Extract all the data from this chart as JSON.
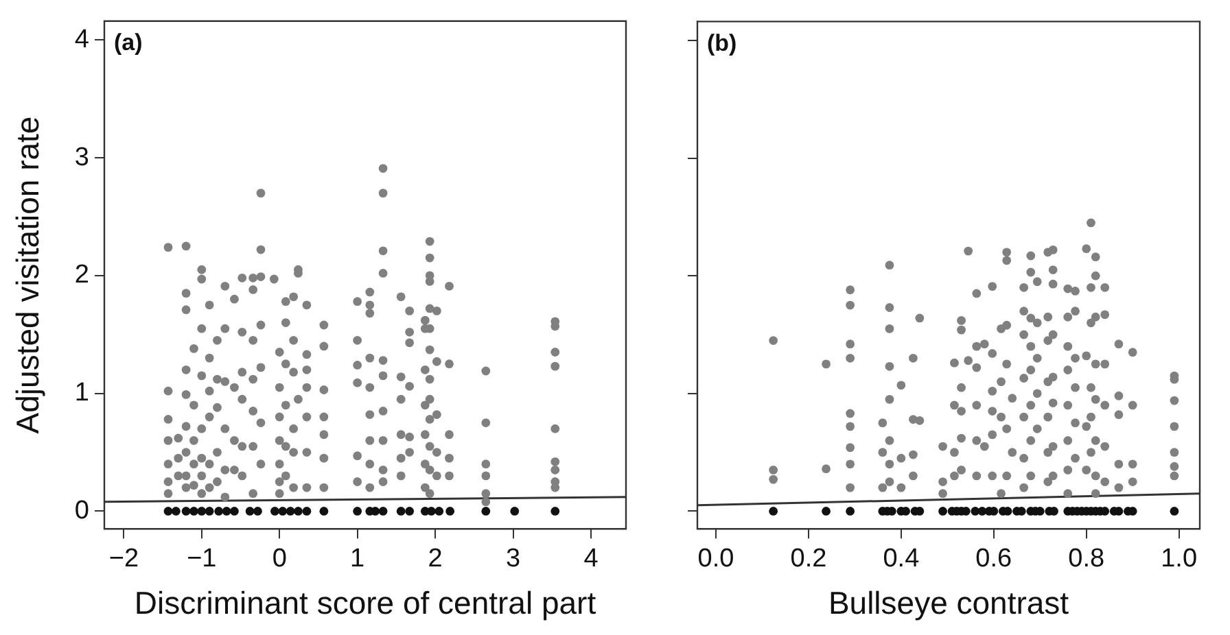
{
  "chart_data": [
    {
      "type": "scatter",
      "annotations": [
        "(a)"
      ],
      "xlabel": "Discriminant score of central part",
      "ylabel": "Adjusted visitation rate",
      "xlim": [
        -2.25,
        4.45
      ],
      "xticks": [
        {
          "value": -2,
          "label": "−2"
        },
        {
          "value": -1,
          "label": "−1"
        },
        0,
        1,
        2,
        3,
        4
      ],
      "ylim": [
        -0.15,
        4.16
      ],
      "yticks": [
        0,
        1,
        2,
        3,
        4
      ],
      "grid": false,
      "legend": false,
      "marker": "circle",
      "series": [
        {
          "color": "#808080",
          "x": [
            -1.43,
            -1.43,
            -1.43,
            -1.43,
            -1.43,
            -1.43,
            -1.43,
            -1.3,
            -1.3,
            -1.3,
            -1.2,
            -1.2,
            -1.2,
            -1.2,
            -1.2,
            -1.2,
            -1.2,
            -1.2,
            -1.2,
            -1.1,
            -1.1,
            -1.1,
            -1.1,
            -1.1,
            -1.0,
            -1.0,
            -1.0,
            -1.0,
            -1.0,
            -1.0,
            -1.0,
            -1.0,
            -0.9,
            -0.9,
            -0.9,
            -0.9,
            -0.9,
            -0.9,
            -0.8,
            -0.8,
            -0.8,
            -0.8,
            -0.8,
            -0.7,
            -0.7,
            -0.7,
            -0.7,
            -0.7,
            -0.7,
            -0.58,
            -0.58,
            -0.58,
            -0.58,
            -0.48,
            -0.48,
            -0.48,
            -0.48,
            -0.48,
            -0.48,
            -0.34,
            -0.34,
            -0.34,
            -0.34,
            -0.34,
            -0.34,
            -0.34,
            -0.24,
            -0.24,
            -0.24,
            -0.24,
            -0.24,
            -0.24,
            -0.24,
            -0.07,
            0.0,
            0.0,
            0.0,
            0.0,
            0.0,
            0.0,
            0.0,
            0.08,
            0.08,
            0.08,
            0.08,
            0.08,
            0.08,
            0.18,
            0.18,
            0.18,
            0.18,
            0.18,
            0.18,
            0.24,
            0.24,
            0.24,
            0.35,
            0.35,
            0.35,
            0.35,
            0.35,
            0.35,
            0.35,
            0.57,
            0.57,
            0.57,
            0.57,
            0.57,
            0.57,
            0.57,
            1.0,
            1.0,
            1.0,
            1.0,
            1.0,
            1.0,
            1.16,
            1.16,
            1.16,
            1.16,
            1.16,
            1.16,
            1.16,
            1.16,
            1.16,
            1.33,
            1.33,
            1.33,
            1.33,
            1.33,
            1.33,
            1.33,
            1.33,
            1.33,
            1.33,
            1.56,
            1.56,
            1.56,
            1.56,
            1.56,
            1.56,
            1.67,
            1.67,
            1.67,
            1.67,
            1.67,
            1.67,
            1.87,
            1.87,
            1.87,
            1.87,
            1.87,
            1.87,
            1.87,
            1.93,
            1.93,
            1.93,
            1.93,
            1.93,
            1.93,
            1.93,
            1.93,
            1.93,
            1.93,
            1.93,
            1.93,
            1.93,
            2.02,
            2.02,
            2.02,
            2.02,
            2.02,
            2.18,
            2.18,
            2.18,
            2.18,
            2.18,
            2.65,
            2.65,
            2.65,
            2.65,
            2.65,
            2.65,
            3.54,
            3.54,
            3.54,
            3.54,
            3.54,
            3.54,
            3.54,
            3.54,
            3.54
          ],
          "values": [
            2.24,
            1.02,
            0.78,
            0.6,
            0.4,
            0.25,
            0.15,
            0.62,
            0.45,
            0.3,
            2.25,
            1.85,
            1.71,
            1.2,
            0.99,
            0.72,
            0.5,
            0.3,
            0.2,
            1.38,
            0.9,
            0.6,
            0.4,
            0.22,
            2.05,
            1.97,
            1.55,
            1.15,
            0.7,
            0.45,
            0.3,
            0.15,
            1.75,
            1.3,
            1.02,
            0.8,
            0.4,
            0.2,
            1.45,
            1.12,
            0.88,
            0.5,
            0.25,
            1.91,
            1.55,
            1.1,
            0.7,
            0.35,
            0.12,
            1.8,
            1.05,
            0.6,
            0.35,
            1.98,
            1.52,
            1.18,
            0.95,
            0.55,
            0.3,
            1.98,
            1.88,
            1.45,
            1.12,
            0.85,
            0.55,
            0.15,
            2.7,
            2.22,
            1.99,
            1.58,
            1.22,
            0.75,
            0.4,
            1.97,
            1.35,
            1.05,
            0.8,
            0.6,
            0.4,
            0.25,
            0.15,
            1.78,
            1.6,
            1.25,
            0.9,
            0.55,
            0.3,
            1.82,
            1.45,
            1.18,
            0.7,
            0.5,
            0.2,
            2.05,
            2.02,
            0.95,
            1.75,
            1.33,
            1.2,
            1.05,
            0.8,
            0.5,
            0.2,
            1.58,
            1.4,
            1.03,
            0.8,
            0.65,
            0.45,
            0.2,
            1.78,
            1.45,
            1.24,
            1.09,
            0.47,
            0.25,
            1.86,
            1.75,
            1.68,
            1.3,
            1.05,
            0.82,
            0.6,
            0.4,
            0.2,
            2.91,
            2.7,
            2.21,
            2.02,
            1.28,
            1.15,
            0.85,
            0.6,
            0.35,
            0.25,
            1.82,
            1.14,
            0.95,
            0.65,
            0.45,
            0.3,
            1.7,
            1.52,
            1.43,
            1.06,
            0.63,
            0.5,
            1.62,
            1.55,
            1.2,
            0.9,
            0.65,
            0.4,
            0.2,
            2.29,
            2.15,
            2.0,
            1.95,
            1.72,
            1.55,
            1.37,
            1.12,
            0.95,
            0.78,
            0.55,
            0.35,
            0.15,
            1.7,
            1.27,
            0.82,
            0.5,
            0.3,
            1.91,
            1.25,
            0.65,
            0.45,
            0.3,
            1.19,
            0.75,
            0.4,
            0.3,
            0.15,
            0.08,
            1.61,
            1.57,
            1.35,
            1.23,
            0.7,
            0.42,
            0.35,
            0.25,
            0.2
          ]
        },
        {
          "color": "#111111",
          "x": [
            -1.43,
            -1.33,
            -1.2,
            -1.1,
            -1.0,
            -0.9,
            -0.78,
            -0.68,
            -0.58,
            -0.38,
            -0.28,
            -0.06,
            0.04,
            0.14,
            0.24,
            0.35,
            0.57,
            1.0,
            1.16,
            1.23,
            1.33,
            1.56,
            1.67,
            1.87,
            1.95,
            2.05,
            2.19,
            2.65,
            3.02,
            3.54
          ],
          "values": [
            0,
            0,
            0,
            0,
            0,
            0,
            0,
            0,
            0,
            0,
            0,
            0,
            0,
            0,
            0,
            0,
            0,
            0,
            0,
            0,
            0,
            0,
            0,
            0,
            0,
            0,
            0,
            0,
            0,
            0
          ]
        },
        {
          "type": "line",
          "marker": "none",
          "color": "#333333",
          "x": [
            -2.25,
            4.45
          ],
          "values": [
            0.08,
            0.12
          ]
        }
      ]
    },
    {
      "type": "scatter",
      "annotations": [
        "(b)"
      ],
      "xlabel": "Bullseye contrast",
      "xlim": [
        -0.04,
        1.045
      ],
      "xticks": [
        {
          "value": 0,
          "label": "0.0"
        },
        0.2,
        0.4,
        0.6,
        0.8,
        {
          "value": 1,
          "label": "1.0"
        }
      ],
      "ylim": [
        -0.15,
        4.16
      ],
      "yticks": [
        0,
        1,
        2,
        3,
        4
      ],
      "tick_labels": "x",
      "grid": false,
      "legend": false,
      "marker": "circle",
      "series": [
        {
          "color": "#808080",
          "x": [
            0.124,
            0.124,
            0.124,
            0.238,
            0.238,
            0.29,
            0.29,
            0.29,
            0.29,
            0.29,
            0.29,
            0.29,
            0.29,
            0.29,
            0.36,
            0.36,
            0.36,
            0.375,
            0.375,
            0.375,
            0.375,
            0.375,
            0.375,
            0.375,
            0.375,
            0.4,
            0.4,
            0.4,
            0.426,
            0.426,
            0.426,
            0.426,
            0.44,
            0.44,
            0.49,
            0.49,
            0.49,
            0.515,
            0.515,
            0.515,
            0.515,
            0.53,
            0.53,
            0.53,
            0.53,
            0.53,
            0.53,
            0.545,
            0.545,
            0.563,
            0.563,
            0.563,
            0.563,
            0.563,
            0.563,
            0.58,
            0.58,
            0.597,
            0.597,
            0.597,
            0.597,
            0.597,
            0.597,
            0.616,
            0.616,
            0.616,
            0.616,
            0.628,
            0.628,
            0.628,
            0.628,
            0.628,
            0.628,
            0.64,
            0.64,
            0.665,
            0.665,
            0.665,
            0.665,
            0.665,
            0.665,
            0.665,
            0.68,
            0.68,
            0.68,
            0.68,
            0.68,
            0.68,
            0.68,
            0.68,
            0.694,
            0.694,
            0.694,
            0.694,
            0.694,
            0.717,
            0.717,
            0.717,
            0.717,
            0.717,
            0.717,
            0.717,
            0.728,
            0.728,
            0.728,
            0.728,
            0.728,
            0.728,
            0.728,
            0.728,
            0.76,
            0.76,
            0.76,
            0.76,
            0.76,
            0.76,
            0.76,
            0.76,
            0.776,
            0.776,
            0.776,
            0.776,
            0.776,
            0.776,
            0.8,
            0.8,
            0.8,
            0.8,
            0.81,
            0.81,
            0.81,
            0.81,
            0.81,
            0.81,
            0.82,
            0.82,
            0.82,
            0.82,
            0.82,
            0.82,
            0.82,
            0.82,
            0.84,
            0.84,
            0.84,
            0.84,
            0.84,
            0.84,
            0.87,
            0.87,
            0.87,
            0.87,
            0.87,
            0.9,
            0.9,
            0.9,
            0.9,
            0.99,
            0.99,
            0.99,
            0.99,
            0.99,
            0.99,
            0.99
          ],
          "values": [
            1.45,
            0.35,
            0.27,
            1.25,
            0.36,
            1.88,
            1.75,
            1.42,
            1.3,
            0.83,
            0.72,
            0.54,
            0.4,
            0.2,
            0.75,
            0.5,
            0.2,
            2.09,
            1.73,
            1.55,
            1.23,
            0.95,
            0.6,
            0.4,
            0.25,
            1.07,
            0.45,
            0.2,
            1.3,
            0.78,
            0.48,
            0.3,
            1.64,
            0.77,
            0.55,
            0.25,
            0.15,
            1.26,
            0.9,
            0.5,
            0.3,
            1.62,
            1.54,
            1.05,
            0.85,
            0.62,
            0.35,
            2.21,
            1.28,
            1.85,
            1.4,
            1.22,
            0.9,
            0.6,
            0.3,
            1.42,
            0.55,
            1.91,
            1.34,
            1.02,
            0.85,
            0.65,
            0.3,
            1.55,
            1.1,
            0.8,
            0.15,
            2.2,
            2.13,
            1.58,
            1.25,
            0.7,
            0.3,
            0.96,
            0.5,
            1.9,
            1.7,
            1.5,
            1.13,
            0.8,
            0.45,
            0.2,
            2.17,
            2.03,
            1.64,
            1.4,
            1.2,
            0.9,
            0.6,
            0.3,
            1.95,
            1.6,
            1.3,
            1.0,
            0.7,
            2.2,
            1.65,
            1.45,
            1.1,
            0.8,
            0.5,
            0.25,
            2.22,
            2.05,
            1.93,
            1.5,
            1.14,
            0.92,
            0.55,
            0.3,
            1.89,
            1.65,
            1.4,
            1.2,
            0.9,
            0.6,
            0.35,
            0.15,
            1.87,
            1.7,
            1.3,
            1.05,
            0.75,
            0.45,
            2.23,
            1.32,
            0.72,
            0.35,
            2.45,
            1.9,
            1.6,
            1.05,
            0.8,
            0.5,
            2.16,
            2.0,
            1.65,
            1.25,
            0.95,
            0.6,
            0.3,
            0.15,
            1.9,
            1.67,
            1.25,
            0.9,
            0.55,
            0.25,
            1.42,
            0.98,
            0.82,
            0.4,
            0.2,
            1.35,
            0.9,
            0.4,
            0.25,
            1.15,
            1.12,
            0.94,
            0.72,
            0.5,
            0.38,
            0.3
          ]
        },
        {
          "color": "#111111",
          "x": [
            0.124,
            0.238,
            0.29,
            0.36,
            0.37,
            0.38,
            0.4,
            0.41,
            0.43,
            0.44,
            0.49,
            0.51,
            0.52,
            0.53,
            0.54,
            0.56,
            0.575,
            0.59,
            0.6,
            0.62,
            0.63,
            0.65,
            0.66,
            0.68,
            0.69,
            0.7,
            0.72,
            0.73,
            0.76,
            0.77,
            0.78,
            0.79,
            0.8,
            0.81,
            0.82,
            0.83,
            0.84,
            0.86,
            0.87,
            0.89,
            0.9,
            0.99
          ],
          "values": [
            0,
            0,
            0,
            0,
            0,
            0,
            0,
            0,
            0,
            0,
            0,
            0,
            0,
            0,
            0,
            0,
            0,
            0,
            0,
            0,
            0,
            0,
            0,
            0,
            0,
            0,
            0,
            0,
            0,
            0,
            0,
            0,
            0,
            0,
            0,
            0,
            0,
            0,
            0,
            0,
            0,
            0
          ]
        },
        {
          "type": "line",
          "marker": "none",
          "color": "#333333",
          "x": [
            -0.04,
            1.045
          ],
          "values": [
            0.05,
            0.15
          ]
        }
      ]
    }
  ]
}
